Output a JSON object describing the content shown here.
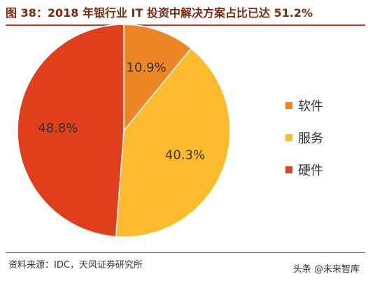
{
  "title": "图 38：2018 年银行业 IT 投资中解决方案占比已达 51.2%",
  "source": "资料来源：IDC，天风证券研究所",
  "watermark": "头条 @未来智库",
  "chart_data": {
    "type": "pie",
    "title": "图 38：2018 年银行业 IT 投资中解决方案占比已达 51.2%",
    "labels": [
      "软件",
      "服务",
      "硬件"
    ],
    "values": [
      10.9,
      40.3,
      48.8
    ],
    "value_labels": [
      "10.9%",
      "40.3%",
      "48.8%"
    ],
    "colors": [
      "#ee8625",
      "#fbbb2d",
      "#df3f1d"
    ],
    "legend_position": "right"
  }
}
